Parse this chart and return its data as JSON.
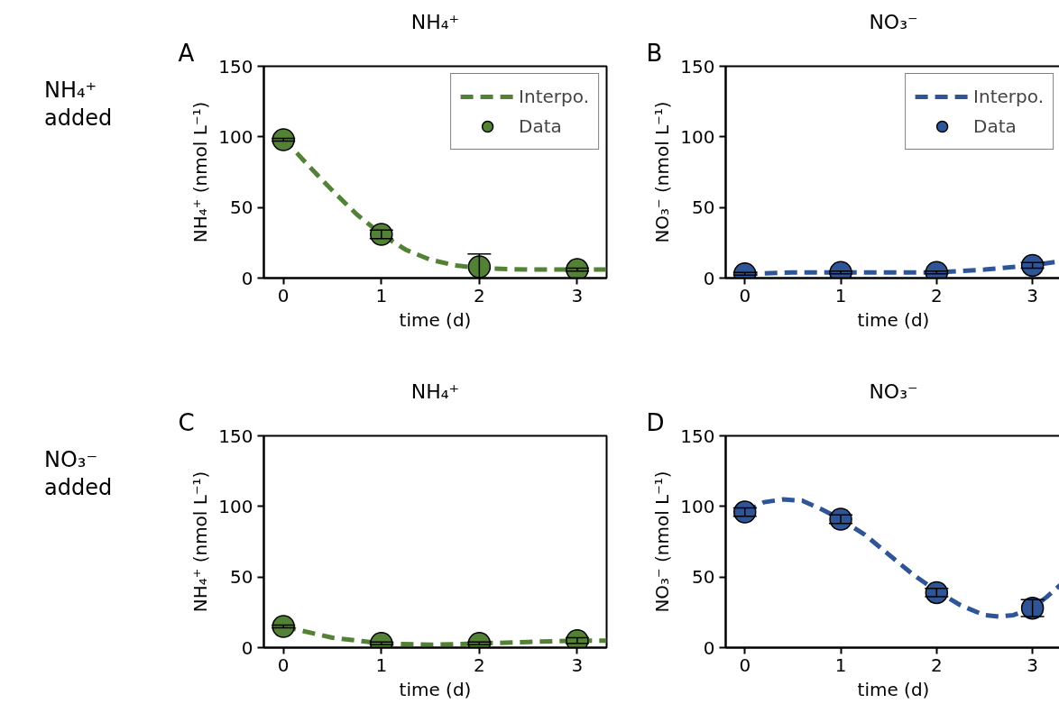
{
  "chart_data": [
    {
      "type": "scatter",
      "title": "NH₄⁺",
      "xlabel": "time (d)",
      "ylabel": "NH₄⁺ (nmol L⁻¹)",
      "annotations": [
        "A",
        "NH₄⁺\nadded"
      ],
      "xlim": [
        -0.2,
        3.3
      ],
      "xticks": [
        0,
        1,
        2,
        3
      ],
      "ylim": [
        0,
        150
      ],
      "yticks": [
        0,
        50,
        100,
        150
      ],
      "legend": "top right",
      "x": [
        0,
        1,
        2,
        3
      ],
      "series": [
        {
          "name": "Interpo.",
          "type": "line",
          "line_style": "dashed",
          "color": "#538135",
          "x": [
            0,
            0.25,
            0.5,
            0.75,
            1,
            1.25,
            1.5,
            1.75,
            2,
            2.5,
            3,
            3.3
          ],
          "values": [
            99,
            80,
            62,
            45,
            31,
            20,
            13,
            9,
            7,
            6,
            6,
            6
          ]
        },
        {
          "name": "Data",
          "marker": "circle",
          "color": "#538135",
          "values": [
            98,
            31,
            8,
            6
          ],
          "errors": [
            1,
            3,
            9,
            1
          ]
        }
      ]
    },
    {
      "type": "scatter",
      "title": "NO₃⁻",
      "xlabel": "time (d)",
      "ylabel": "NO₃⁻ (nmol L⁻¹)",
      "annotations": [
        "B"
      ],
      "xlim": [
        -0.2,
        3.3
      ],
      "xticks": [
        0,
        1,
        2,
        3
      ],
      "ylim": [
        0,
        150
      ],
      "yticks": [
        0,
        50,
        100,
        150
      ],
      "legend": "top right",
      "x": [
        0,
        1,
        2,
        3
      ],
      "series": [
        {
          "name": "Interpo.",
          "type": "line",
          "line_style": "dashed",
          "color": "#2f5597",
          "x": [
            0,
            0.5,
            1,
            1.5,
            2,
            2.5,
            3,
            3.3
          ],
          "values": [
            3,
            4,
            4,
            4,
            4,
            6,
            9,
            12
          ]
        },
        {
          "name": "Data",
          "marker": "circle",
          "color": "#2f5597",
          "values": [
            3,
            4,
            4,
            9
          ],
          "errors": [
            1,
            1,
            1,
            2
          ]
        }
      ]
    },
    {
      "type": "scatter",
      "title": "NH₄⁺",
      "xlabel": "time (d)",
      "ylabel": "NH₄⁺ (nmol L⁻¹)",
      "annotations": [
        "C",
        "NO₃⁻\nadded"
      ],
      "xlim": [
        -0.2,
        3.3
      ],
      "xticks": [
        0,
        1,
        2,
        3
      ],
      "ylim": [
        0,
        150
      ],
      "yticks": [
        0,
        50,
        100,
        150
      ],
      "x": [
        0,
        1,
        2,
        3
      ],
      "series": [
        {
          "type": "line",
          "line_style": "dashed",
          "color": "#538135",
          "x": [
            0,
            0.5,
            1,
            1.5,
            2,
            2.5,
            3,
            3.3
          ],
          "values": [
            15,
            7,
            3,
            2,
            3,
            4,
            5,
            5
          ]
        },
        {
          "marker": "circle",
          "color": "#538135",
          "values": [
            15,
            3,
            3,
            5
          ],
          "errors": [
            1,
            1,
            1,
            2
          ]
        }
      ]
    },
    {
      "type": "scatter",
      "title": "NO₃⁻",
      "xlabel": "time (d)",
      "ylabel": "NO₃⁻ (nmol L⁻¹)",
      "annotations": [
        "D"
      ],
      "xlim": [
        -0.2,
        3.3
      ],
      "xticks": [
        0,
        1,
        2,
        3
      ],
      "ylim": [
        0,
        150
      ],
      "yticks": [
        0,
        50,
        100,
        150
      ],
      "x": [
        0,
        1,
        2,
        3
      ],
      "series": [
        {
          "type": "line",
          "line_style": "dashed",
          "color": "#2f5597",
          "x": [
            0,
            0.2,
            0.4,
            0.6,
            0.8,
            1,
            1.25,
            1.5,
            1.75,
            2,
            2.25,
            2.5,
            2.65,
            2.8,
            3,
            3.15,
            3.3
          ],
          "values": [
            96,
            103,
            105,
            104,
            98,
            91,
            80,
            66,
            52,
            40,
            30,
            23,
            22,
            23,
            28,
            36,
            45
          ]
        },
        {
          "marker": "circle",
          "color": "#2f5597",
          "values": [
            96,
            91,
            39,
            28
          ],
          "errors": [
            3,
            3,
            3,
            6
          ]
        }
      ]
    }
  ]
}
